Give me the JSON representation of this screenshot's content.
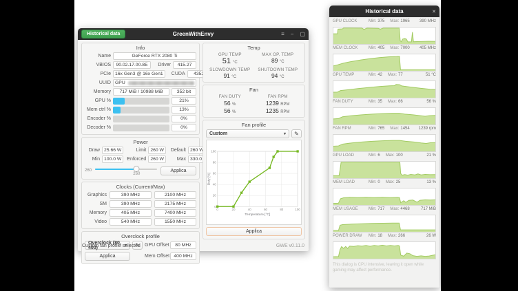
{
  "main_window": {
    "titlebar": {
      "historical_button": "Historical data",
      "title": "GreenWithEnvy",
      "menu_icon": "≡",
      "minimize_icon": "−",
      "maximize_icon": "▢"
    },
    "info": {
      "title": "Info",
      "name_label": "Name",
      "name": "GeForce RTX 2080 Ti",
      "vbios_label": "VBIOS",
      "vbios": "90.02.17.00.8E",
      "driver_label": "Driver",
      "driver": "415.27",
      "pcie_label": "PCIe",
      "pcie": "16x Gen3 @ 16x Gen1",
      "cuda_label": "CUDA",
      "cuda": "4352",
      "uuid_label": "UUID",
      "uuid": "GPU",
      "memory_label": "Memory",
      "memory": "717 MiB / 10988 MiB",
      "memory_interface": "352 bit",
      "usage": [
        {
          "label": "GPU %",
          "value": "21%",
          "pct": 21
        },
        {
          "label": "Mem ctrl %",
          "value": "13%",
          "pct": 13
        },
        {
          "label": "Encoder %",
          "value": "0%",
          "pct": 0
        },
        {
          "label": "Decoder %",
          "value": "0%",
          "pct": 0
        }
      ]
    },
    "power": {
      "title": "Power",
      "draw_label": "Draw",
      "draw": "25.66 W",
      "limit_label": "Limit",
      "limit": "260 W",
      "default_label": "Default",
      "default": "260 W",
      "min_label": "Min",
      "min": "100.0 W",
      "enforced_label": "Enforced",
      "enforced": "260 W",
      "max_label": "Max",
      "max": "330.0 W",
      "slider_left_label": "260",
      "slider_value": "260",
      "slider_pct": 67,
      "apply_label": "Applica"
    },
    "clocks": {
      "title": "Clocks (Current/Max)",
      "rows": [
        {
          "label": "Graphics",
          "current": "390 MHz",
          "max": "2100 MHz"
        },
        {
          "label": "SM",
          "current": "390 MHz",
          "max": "2175 MHz"
        },
        {
          "label": "Memory",
          "current": "405 MHz",
          "max": "7400 MHz"
        },
        {
          "label": "Video",
          "current": "540 MHz",
          "max": "1550 MHz"
        }
      ]
    },
    "overclock": {
      "title": "Overclock profile",
      "profile": "Overclock (80, 400)",
      "edit_icon": "✎",
      "gpu_offset_label": "GPU Offset",
      "gpu_offset": "80 MHz",
      "apply_label": "Applica",
      "mem_offset_label": "Mem Offset",
      "mem_offset": "400 MHz"
    },
    "temp": {
      "title": "Temp",
      "gpu_temp_label": "GPU TEMP",
      "gpu_temp": "51",
      "gpu_temp_unit": "°C",
      "max_op_label": "MAX OP. TEMP",
      "max_op": "89",
      "max_op_unit": "°C",
      "slowdown_label": "SLOWDOWN TEMP",
      "slowdown": "91",
      "slowdown_unit": "°C",
      "shutdown_label": "SHUTDOWN TEMP",
      "shutdown": "94",
      "shutdown_unit": "°C"
    },
    "fan": {
      "title": "Fan",
      "duty_label": "FAN DUTY",
      "rpm_label": "FAN RPM",
      "duty1": "56",
      "duty1_unit": "%",
      "duty2": "56",
      "duty2_unit": "%",
      "rpm1": "1239",
      "rpm1_unit": "RPM",
      "rpm2": "1235",
      "rpm2_unit": "RPM"
    },
    "fan_profile": {
      "title": "Fan profile",
      "selected": "Custom",
      "edit_icon": "✎",
      "apply_label": "Applica"
    },
    "statusbar": {
      "status": "Custom fan profile selected",
      "version": "GWE v0.11.0"
    }
  },
  "historical_window": {
    "title": "Historical data",
    "close_icon": "✕",
    "min_label": "Min:",
    "max_label": "Max:",
    "charts": [
      {
        "label": "GPU CLOCK",
        "min": "375",
        "max": "1965",
        "current": "390 MHz"
      },
      {
        "label": "MEM CLOCK",
        "min": "405",
        "max": "7000",
        "current": "405 MHz"
      },
      {
        "label": "GPU TEMP",
        "min": "42",
        "max": "77",
        "current": "51 °C"
      },
      {
        "label": "FAN DUTY",
        "min": "35",
        "max": "66",
        "current": "56 %"
      },
      {
        "label": "FAN RPM",
        "min": "765",
        "max": "1454",
        "current": "1239 rpm"
      },
      {
        "label": "GPU LOAD",
        "min": "6",
        "max": "100",
        "current": "21 %"
      },
      {
        "label": "MEM LOAD",
        "min": "0",
        "max": "25",
        "current": "13 %"
      },
      {
        "label": "MEM USAGE",
        "min": "717",
        "max": "4468",
        "current": "717 MiB"
      },
      {
        "label": "POWER DRAW",
        "min": "18",
        "max": "266",
        "current": "26 W"
      }
    ],
    "disclaimer": "This dialog is CPU intensive, leaving it open while gaming may affect performance."
  },
  "colors": {
    "accent_cyan": "#3cc0f0",
    "button_green": "#3fa04f",
    "fan_line_green": "#76b822",
    "hist_fill_green": "#c9e29c",
    "hist_line_green": "#a3cb63",
    "titlebar": "#2d2d2d"
  },
  "chart_data": [
    {
      "type": "line",
      "title": "Fan profile — Custom",
      "xlabel": "Temperature [°C]",
      "ylabel": "Duty [%]",
      "xlim": [
        0,
        100
      ],
      "ylim": [
        0,
        100
      ],
      "xticks": [
        0,
        20,
        40,
        60,
        80,
        100
      ],
      "yticks": [
        0,
        20,
        40,
        60,
        80,
        100
      ],
      "grid": true,
      "line_color": "#76b822",
      "points": [
        [
          0,
          0
        ],
        [
          20,
          0
        ],
        [
          30,
          25
        ],
        [
          40,
          45
        ],
        [
          65,
          70
        ],
        [
          70,
          90
        ],
        [
          75,
          100
        ],
        [
          100,
          100
        ]
      ]
    },
    {
      "type": "area",
      "title": "Historical data",
      "fill_color": "#c9e29c",
      "line_color": "#a3cb63",
      "series": [
        {
          "name": "GPU CLOCK",
          "unit": "MHz",
          "min": 375,
          "max": 1965,
          "current": 390,
          "shape": [
            [
              0,
              0.62
            ],
            [
              0.04,
              0.62
            ],
            [
              0.045,
              0.9
            ],
            [
              0.09,
              0.92
            ],
            [
              0.1,
              0.97
            ],
            [
              0.28,
              0.96
            ],
            [
              0.3,
              0.89
            ],
            [
              0.33,
              0.96
            ],
            [
              0.44,
              0.95
            ],
            [
              0.46,
              0.9
            ],
            [
              0.49,
              0.96
            ],
            [
              0.63,
              0.96
            ],
            [
              0.645,
              0.96
            ],
            [
              0.655,
              0.2
            ],
            [
              0.665,
              0.14
            ],
            [
              0.68,
              0.3
            ],
            [
              0.7,
              0.34
            ],
            [
              0.715,
              0.3
            ],
            [
              0.73,
              0.13
            ],
            [
              0.765,
              0.13
            ],
            [
              0.775,
              0.72
            ],
            [
              0.785,
              0.14
            ],
            [
              0.85,
              0.15
            ],
            [
              0.93,
              0.17
            ],
            [
              1,
              0.16
            ]
          ]
        },
        {
          "name": "MEM CLOCK",
          "unit": "MHz",
          "min": 405,
          "max": 7000,
          "current": 405,
          "shape": [
            [
              0,
              0.3
            ],
            [
              0.04,
              0.36
            ],
            [
              0.1,
              0.47
            ],
            [
              0.18,
              0.57
            ],
            [
              0.27,
              0.66
            ],
            [
              0.36,
              0.74
            ],
            [
              0.45,
              0.8
            ],
            [
              0.54,
              0.85
            ],
            [
              0.62,
              0.87
            ],
            [
              0.648,
              0.88
            ],
            [
              0.658,
              0.07
            ],
            [
              1,
              0.07
            ]
          ]
        },
        {
          "name": "GPU TEMP",
          "unit": "°C",
          "min": 42,
          "max": 77,
          "current": 51,
          "shape": [
            [
              0,
              0.33
            ],
            [
              0.04,
              0.34
            ],
            [
              0.07,
              0.43
            ],
            [
              0.14,
              0.48
            ],
            [
              0.24,
              0.55
            ],
            [
              0.35,
              0.62
            ],
            [
              0.46,
              0.68
            ],
            [
              0.55,
              0.72
            ],
            [
              0.6,
              0.73
            ],
            [
              0.615,
              0.8
            ],
            [
              0.65,
              0.79
            ],
            [
              0.67,
              0.71
            ],
            [
              0.76,
              0.64
            ],
            [
              0.86,
              0.57
            ],
            [
              0.95,
              0.51
            ],
            [
              1,
              0.5
            ]
          ]
        },
        {
          "name": "FAN DUTY",
          "unit": "%",
          "min": 35,
          "max": 66,
          "current": 56,
          "shape": [
            [
              0,
              0.34
            ],
            [
              0.05,
              0.36
            ],
            [
              0.09,
              0.47
            ],
            [
              0.18,
              0.54
            ],
            [
              0.28,
              0.59
            ],
            [
              0.38,
              0.63
            ],
            [
              0.48,
              0.66
            ],
            [
              0.58,
              0.68
            ],
            [
              0.645,
              0.68
            ],
            [
              0.7,
              0.63
            ],
            [
              0.78,
              0.59
            ],
            [
              0.86,
              0.53
            ],
            [
              0.9,
              0.5
            ],
            [
              0.94,
              0.54
            ],
            [
              1,
              0.55
            ]
          ]
        },
        {
          "name": "FAN RPM",
          "unit": "rpm",
          "min": 765,
          "max": 1454,
          "current": 1239,
          "shape": [
            [
              0,
              0.31
            ],
            [
              0.05,
              0.33
            ],
            [
              0.09,
              0.44
            ],
            [
              0.18,
              0.51
            ],
            [
              0.28,
              0.57
            ],
            [
              0.38,
              0.61
            ],
            [
              0.48,
              0.64
            ],
            [
              0.58,
              0.66
            ],
            [
              0.65,
              0.66
            ],
            [
              0.71,
              0.61
            ],
            [
              0.79,
              0.57
            ],
            [
              0.86,
              0.51
            ],
            [
              0.91,
              0.48
            ],
            [
              0.95,
              0.52
            ],
            [
              1,
              0.53
            ]
          ]
        },
        {
          "name": "GPU LOAD",
          "unit": "%",
          "min": 6,
          "max": 100,
          "current": 21,
          "shape": [
            [
              0,
              0.15
            ],
            [
              0.055,
              0.15
            ],
            [
              0.065,
              0.5
            ],
            [
              0.075,
              0.96
            ],
            [
              0.2,
              0.97
            ],
            [
              0.35,
              0.96
            ],
            [
              0.5,
              0.97
            ],
            [
              0.64,
              0.96
            ],
            [
              0.652,
              0.96
            ],
            [
              0.66,
              0.28
            ],
            [
              0.675,
              0.18
            ],
            [
              0.7,
              0.22
            ],
            [
              0.73,
              0.18
            ],
            [
              0.76,
              0.23
            ],
            [
              0.8,
              0.2
            ],
            [
              0.83,
              0.26
            ],
            [
              0.86,
              0.2
            ],
            [
              0.9,
              0.23
            ],
            [
              0.95,
              0.21
            ],
            [
              1,
              0.22
            ]
          ]
        },
        {
          "name": "MEM LOAD",
          "unit": "%",
          "min": 0,
          "max": 25,
          "current": 13,
          "shape": [
            [
              0,
              0.1
            ],
            [
              0.05,
              0.11
            ],
            [
              0.07,
              0.38
            ],
            [
              0.1,
              0.44
            ],
            [
              0.16,
              0.46
            ],
            [
              0.24,
              0.45
            ],
            [
              0.32,
              0.46
            ],
            [
              0.4,
              0.45
            ],
            [
              0.48,
              0.46
            ],
            [
              0.56,
              0.45
            ],
            [
              0.63,
              0.46
            ],
            [
              0.648,
              0.45
            ],
            [
              0.66,
              0.14
            ],
            [
              0.69,
              0.26
            ],
            [
              0.71,
              0.16
            ],
            [
              0.74,
              0.28
            ],
            [
              0.78,
              0.3
            ],
            [
              0.82,
              0.17
            ],
            [
              0.85,
              0.29
            ],
            [
              0.9,
              0.31
            ],
            [
              0.95,
              0.3
            ],
            [
              1,
              0.31
            ]
          ]
        },
        {
          "name": "MEM USAGE",
          "unit": "MiB",
          "min": 717,
          "max": 4468,
          "current": 717,
          "shape": [
            [
              0,
              0.08
            ],
            [
              0.05,
              0.08
            ],
            [
              0.065,
              0.4
            ],
            [
              0.09,
              0.44
            ],
            [
              0.18,
              0.47
            ],
            [
              0.28,
              0.49
            ],
            [
              0.38,
              0.51
            ],
            [
              0.48,
              0.52
            ],
            [
              0.58,
              0.53
            ],
            [
              0.645,
              0.53
            ],
            [
              0.658,
              0.12
            ],
            [
              1,
              0.12
            ]
          ]
        },
        {
          "name": "POWER DRAW",
          "unit": "W",
          "min": 18,
          "max": 266,
          "current": 26,
          "shape": [
            [
              0,
              0.12
            ],
            [
              0.05,
              0.13
            ],
            [
              0.065,
              0.55
            ],
            [
              0.08,
              0.73
            ],
            [
              0.1,
              0.62
            ],
            [
              0.12,
              0.74
            ],
            [
              0.14,
              0.62
            ],
            [
              0.16,
              0.76
            ],
            [
              0.2,
              0.74
            ],
            [
              0.24,
              0.79
            ],
            [
              0.28,
              0.76
            ],
            [
              0.32,
              0.8
            ],
            [
              0.36,
              0.75
            ],
            [
              0.4,
              0.8
            ],
            [
              0.44,
              0.77
            ],
            [
              0.48,
              0.82
            ],
            [
              0.52,
              0.77
            ],
            [
              0.56,
              0.8
            ],
            [
              0.6,
              0.77
            ],
            [
              0.635,
              0.8
            ],
            [
              0.648,
              0.77
            ],
            [
              0.66,
              0.22
            ],
            [
              0.69,
              0.15
            ],
            [
              0.72,
              0.34
            ],
            [
              0.75,
              0.3
            ],
            [
              0.78,
              0.18
            ],
            [
              0.82,
              0.14
            ],
            [
              0.86,
              0.17
            ],
            [
              0.9,
              0.14
            ],
            [
              0.94,
              0.16
            ],
            [
              1,
              0.24
            ]
          ]
        }
      ]
    }
  ]
}
